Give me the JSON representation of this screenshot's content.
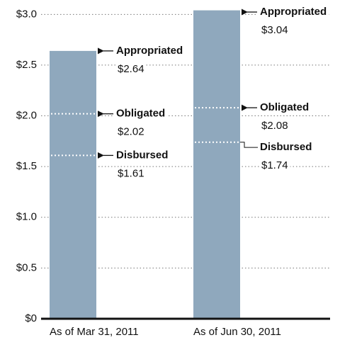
{
  "chart_data": {
    "type": "bar",
    "categories": [
      "As of Mar 31, 2011",
      "As of Jun 30, 2011"
    ],
    "series": [
      {
        "name": "Appropriated",
        "color": "#8fa8bd",
        "values": [
          2.64,
          3.04
        ],
        "value_labels": [
          "$2.64",
          "$3.04"
        ]
      },
      {
        "name": "Obligated",
        "color": "#ffffff",
        "values": [
          2.02,
          2.08
        ],
        "value_labels": [
          "$2.02",
          "$2.08"
        ]
      },
      {
        "name": "Disbursed",
        "color": "#ffffff",
        "values": [
          1.61,
          1.74
        ],
        "value_labels": [
          "$1.61",
          "$1.74"
        ]
      }
    ],
    "ylim": [
      0,
      3.1
    ],
    "yticks": [
      {
        "value": 0,
        "label": "$0"
      },
      {
        "value": 0.5,
        "label": "$0.5"
      },
      {
        "value": 1.0,
        "label": "$1.0"
      },
      {
        "value": 1.5,
        "label": "$1.5"
      },
      {
        "value": 2.0,
        "label": "$2.0"
      },
      {
        "value": 2.5,
        "label": "$2.5"
      },
      {
        "value": 3.0,
        "label": "$3.0"
      }
    ],
    "grid": true
  }
}
